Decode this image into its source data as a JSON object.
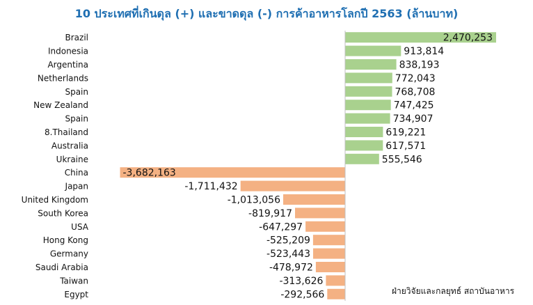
{
  "chart_data": {
    "type": "bar",
    "orientation": "horizontal",
    "title": "10 ประเทศที่เกินดุล (+) และขาดดุล (-) การค้าอาหารโลกปี 2563 (ล้านบาท)",
    "categories": [
      "Brazil",
      "Indonesia",
      "Argentina",
      "Netherlands",
      "Spain",
      "New Zealand",
      "Spain",
      "8.Thailand",
      "Australia",
      "Ukraine",
      "China",
      "Japan",
      "United Kingdom",
      "South Korea",
      "USA",
      "Hong Kong",
      "Germany",
      "Saudi Arabia",
      "Taiwan",
      "Egypt"
    ],
    "values": [
      2470253,
      913814,
      838193,
      772043,
      768708,
      747425,
      734907,
      619221,
      617571,
      555546,
      -3682163,
      -1711432,
      -1013056,
      -819917,
      -647297,
      -525209,
      -523443,
      -478972,
      -313626,
      -292566
    ],
    "value_labels": [
      "2,470,253",
      "913,814",
      "838,193",
      "772,043",
      "768,708",
      "747,425",
      "734,907",
      "619,221",
      "617,571",
      "555,546",
      "-3,682,163",
      "-1,711,432",
      "-1,013,056",
      "-819,917",
      "-647,297",
      "-525,209",
      "-523,443",
      "-478,972",
      "-313,626",
      "-292,566"
    ],
    "colors": {
      "positive": "#a9d18e",
      "negative": "#f4b183",
      "axis": "#bfbfbf",
      "title": "#1f6fb2"
    },
    "grid": false,
    "legend": "none"
  },
  "source_note": "ฝ่ายวิจัยและกลยุทธ์ สถาบันอาหาร"
}
